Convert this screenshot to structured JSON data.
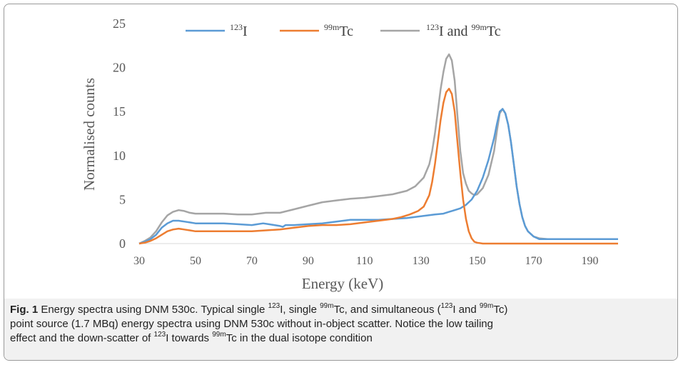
{
  "chart_data": {
    "type": "line",
    "xlabel": "Energy (keV)",
    "ylabel": "Normalised counts",
    "xlim": [
      30,
      200
    ],
    "ylim": [
      0,
      25
    ],
    "x_ticks": [
      "30",
      "50",
      "70",
      "90",
      "110",
      "130",
      "150",
      "170",
      "190"
    ],
    "y_ticks": [
      "0",
      "5",
      "10",
      "15",
      "20",
      "25"
    ],
    "grid": false,
    "legend_position": "top",
    "series": [
      {
        "name_mass": "123",
        "name_symbol": "I",
        "color": "#5b9bd5",
        "x": [
          30,
          32,
          34,
          36,
          38,
          40,
          42,
          44,
          46,
          48,
          50,
          55,
          60,
          65,
          70,
          72,
          74,
          76,
          78,
          80,
          81,
          82,
          85,
          90,
          95,
          100,
          105,
          110,
          115,
          120,
          125,
          130,
          135,
          138,
          140,
          142,
          144,
          146,
          148,
          150,
          152,
          154,
          156,
          157,
          158,
          159,
          160,
          161,
          162,
          163,
          164,
          165,
          166,
          167,
          168,
          170,
          172,
          175,
          180,
          190,
          200
        ],
        "y": [
          0,
          0.2,
          0.5,
          1.0,
          1.8,
          2.3,
          2.6,
          2.6,
          2.5,
          2.4,
          2.3,
          2.3,
          2.3,
          2.2,
          2.1,
          2.2,
          2.3,
          2.2,
          2.1,
          2.0,
          1.9,
          2.1,
          2.1,
          2.2,
          2.3,
          2.5,
          2.7,
          2.7,
          2.7,
          2.8,
          2.9,
          3.1,
          3.3,
          3.4,
          3.6,
          3.8,
          4.0,
          4.4,
          5.0,
          6.0,
          7.5,
          9.5,
          12.0,
          13.6,
          15.0,
          15.3,
          14.8,
          13.5,
          11.5,
          9.0,
          6.5,
          4.5,
          3.0,
          2.0,
          1.4,
          0.8,
          0.5,
          0.5,
          0.5,
          0.5,
          0.5
        ]
      },
      {
        "name_mass": "99m",
        "name_symbol": "Tc",
        "color": "#ed7d31",
        "x": [
          30,
          32,
          34,
          36,
          38,
          40,
          42,
          44,
          46,
          48,
          50,
          55,
          60,
          65,
          70,
          75,
          80,
          85,
          90,
          95,
          100,
          105,
          110,
          115,
          120,
          123,
          126,
          129,
          131,
          133,
          134,
          135,
          136,
          137,
          138,
          139,
          140,
          141,
          142,
          143,
          144,
          145,
          146,
          147,
          148,
          149,
          150,
          152,
          155,
          160,
          170,
          200
        ],
        "y": [
          0,
          0.1,
          0.3,
          0.6,
          1.0,
          1.4,
          1.6,
          1.7,
          1.6,
          1.5,
          1.4,
          1.4,
          1.4,
          1.4,
          1.4,
          1.5,
          1.6,
          1.8,
          2.0,
          2.1,
          2.1,
          2.2,
          2.4,
          2.6,
          2.8,
          3.0,
          3.3,
          3.7,
          4.2,
          5.5,
          7.0,
          9.0,
          11.5,
          14.0,
          16.0,
          17.2,
          17.6,
          17.0,
          15.0,
          11.5,
          8.0,
          5.0,
          2.8,
          1.4,
          0.6,
          0.2,
          0.1,
          0,
          0,
          0,
          0,
          0
        ]
      },
      {
        "name_mass_1": "123",
        "name_symbol_1": "I and ",
        "name_mass_2": "99m",
        "name_symbol_2": "Tc",
        "color": "#a5a5a5",
        "x": [
          30,
          32,
          34,
          36,
          38,
          40,
          42,
          44,
          46,
          48,
          50,
          55,
          60,
          65,
          70,
          75,
          80,
          85,
          90,
          95,
          100,
          105,
          110,
          115,
          120,
          125,
          128,
          131,
          133,
          134,
          135,
          136,
          137,
          138,
          139,
          140,
          141,
          142,
          143,
          144,
          145,
          146,
          147,
          148,
          149,
          150,
          152,
          154,
          156,
          157,
          158,
          159,
          160,
          161,
          162,
          163,
          164,
          165,
          166,
          167,
          168,
          170,
          172,
          175,
          180,
          190,
          200
        ],
        "y": [
          0,
          0.3,
          0.7,
          1.4,
          2.4,
          3.2,
          3.6,
          3.8,
          3.7,
          3.5,
          3.4,
          3.4,
          3.4,
          3.3,
          3.3,
          3.5,
          3.5,
          3.9,
          4.3,
          4.7,
          4.9,
          5.1,
          5.2,
          5.4,
          5.6,
          6.0,
          6.5,
          7.5,
          9.0,
          10.5,
          12.5,
          15.0,
          17.5,
          19.5,
          21.0,
          21.5,
          20.8,
          18.5,
          14.5,
          10.5,
          8.0,
          6.8,
          6.0,
          5.7,
          5.5,
          5.6,
          6.3,
          7.8,
          10.5,
          12.8,
          14.8,
          15.3,
          14.8,
          13.5,
          11.5,
          9.0,
          6.5,
          4.5,
          3.0,
          2.0,
          1.4,
          0.8,
          0.6,
          0.5,
          0.5,
          0.5,
          0.5
        ]
      }
    ]
  },
  "caption": {
    "label": "Fig. 1",
    "line1_a": " Energy spectra using DNM 530c. Typical single ",
    "line1_sup1": "123",
    "line1_b": "I, single ",
    "line1_sup2": "99m",
    "line1_c": "Tc, and simultaneous (",
    "line1_sup3": "123",
    "line1_d": "I and ",
    "line1_sup4": "99m",
    "line1_e": "Tc)",
    "line2": "point source (1.7 MBq) energy spectra using DNM 530c without in-object scatter. Notice the low tailing",
    "line3_a": "effect and the down-scatter of ",
    "line3_sup1": "123",
    "line3_b": "I towards ",
    "line3_sup2": "99m",
    "line3_c": "Tc in the dual isotope condition"
  }
}
